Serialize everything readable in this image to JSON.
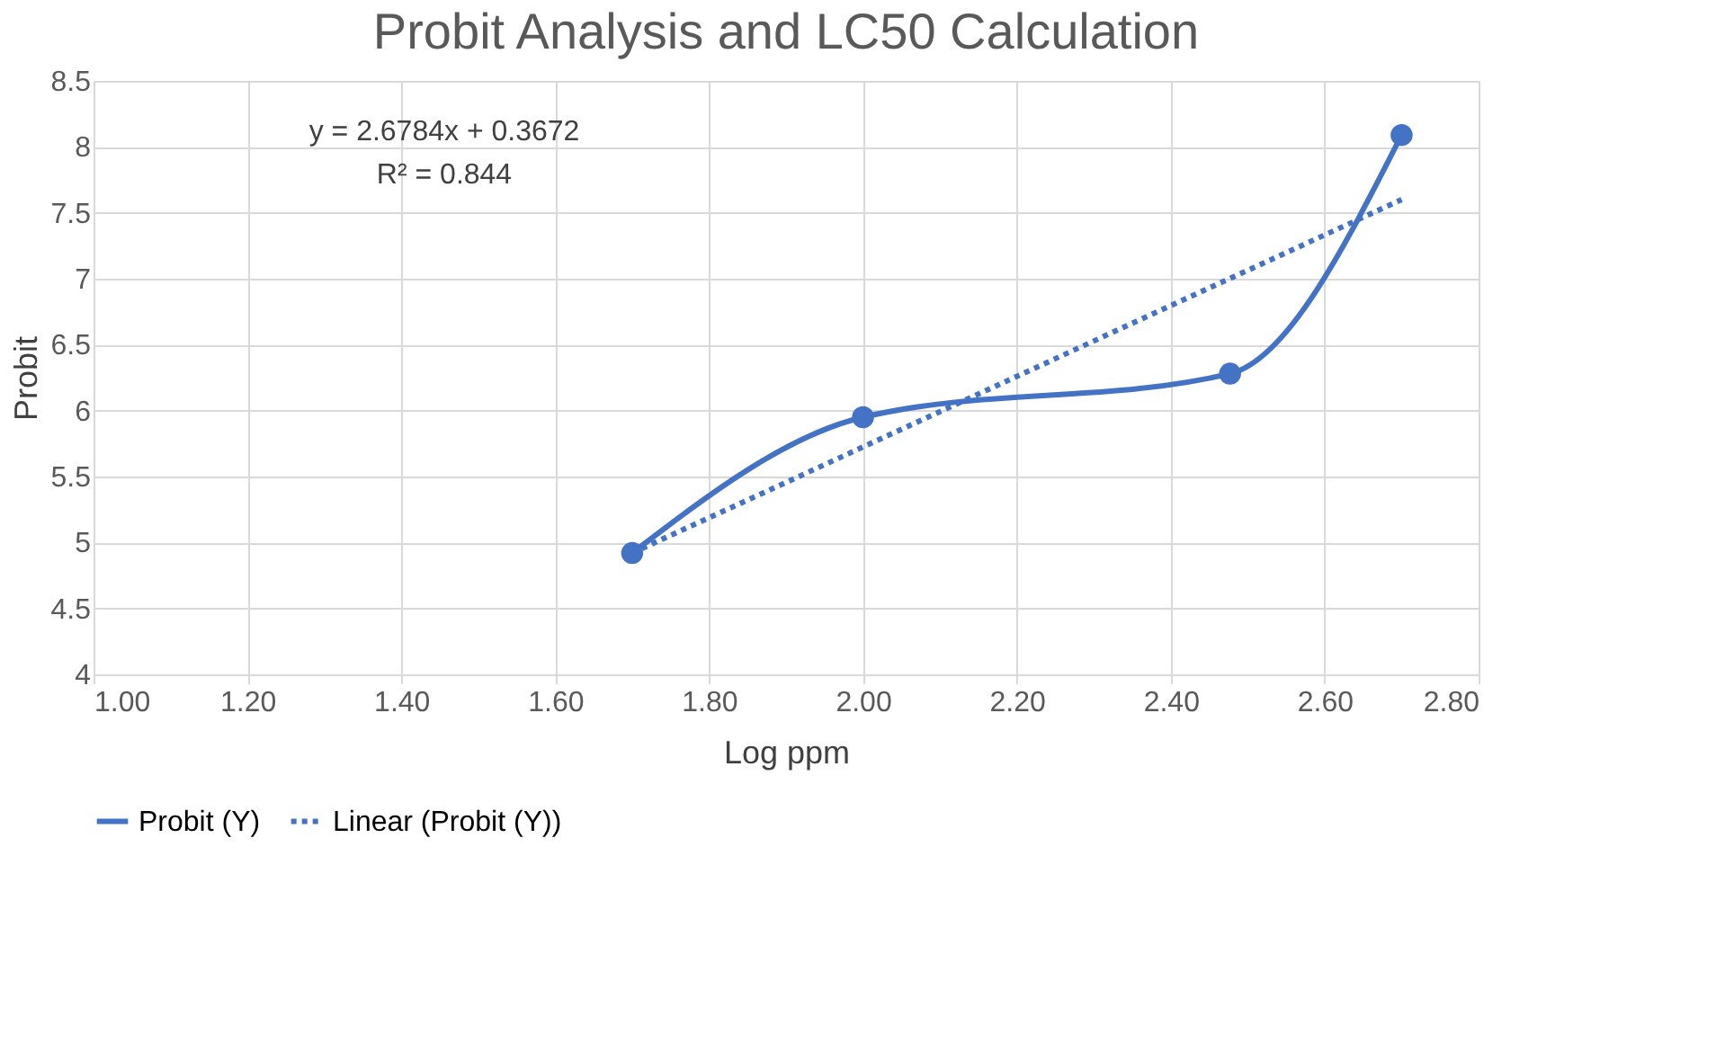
{
  "chart_data": {
    "type": "line",
    "title": "Probit Analysis and LC50 Calculation",
    "xlabel": "Log ppm",
    "ylabel": "Probit",
    "xlim": [
      1.0,
      2.8
    ],
    "xticks": [
      {
        "value": 1.0,
        "label": "1.00"
      },
      {
        "value": 1.2,
        "label": "1.20"
      },
      {
        "value": 1.4,
        "label": "1.40"
      },
      {
        "value": 1.6,
        "label": "1.60"
      },
      {
        "value": 1.8,
        "label": "1.80"
      },
      {
        "value": 2.0,
        "label": "2.00"
      },
      {
        "value": 2.2,
        "label": "2.20"
      },
      {
        "value": 2.4,
        "label": "2.40"
      },
      {
        "value": 2.6,
        "label": "2.60"
      },
      {
        "value": 2.8,
        "label": "2.80"
      }
    ],
    "ylim": [
      4,
      8.5
    ],
    "yticks": [
      4,
      4.5,
      5,
      5.5,
      6,
      6.5,
      7,
      7.5,
      8,
      8.5
    ],
    "grid": true,
    "legend": "bottom",
    "annotations": [
      "y = 2.6784x + 0.3672",
      "R² = 0.844"
    ],
    "series": [
      {
        "name": "Probit (Y)",
        "color": "#4472c4",
        "marker": "circle",
        "line_style": "solid",
        "x": [
          1.7,
          2.0,
          2.477,
          2.7
        ],
        "values": [
          4.92,
          5.95,
          6.28,
          8.09
        ]
      },
      {
        "name": "Linear (Probit (Y))",
        "color": "#4472c4",
        "marker": "none",
        "line_style": "dotted",
        "x": [
          1.7,
          2.7
        ],
        "values": [
          4.92,
          7.6
        ]
      }
    ]
  }
}
